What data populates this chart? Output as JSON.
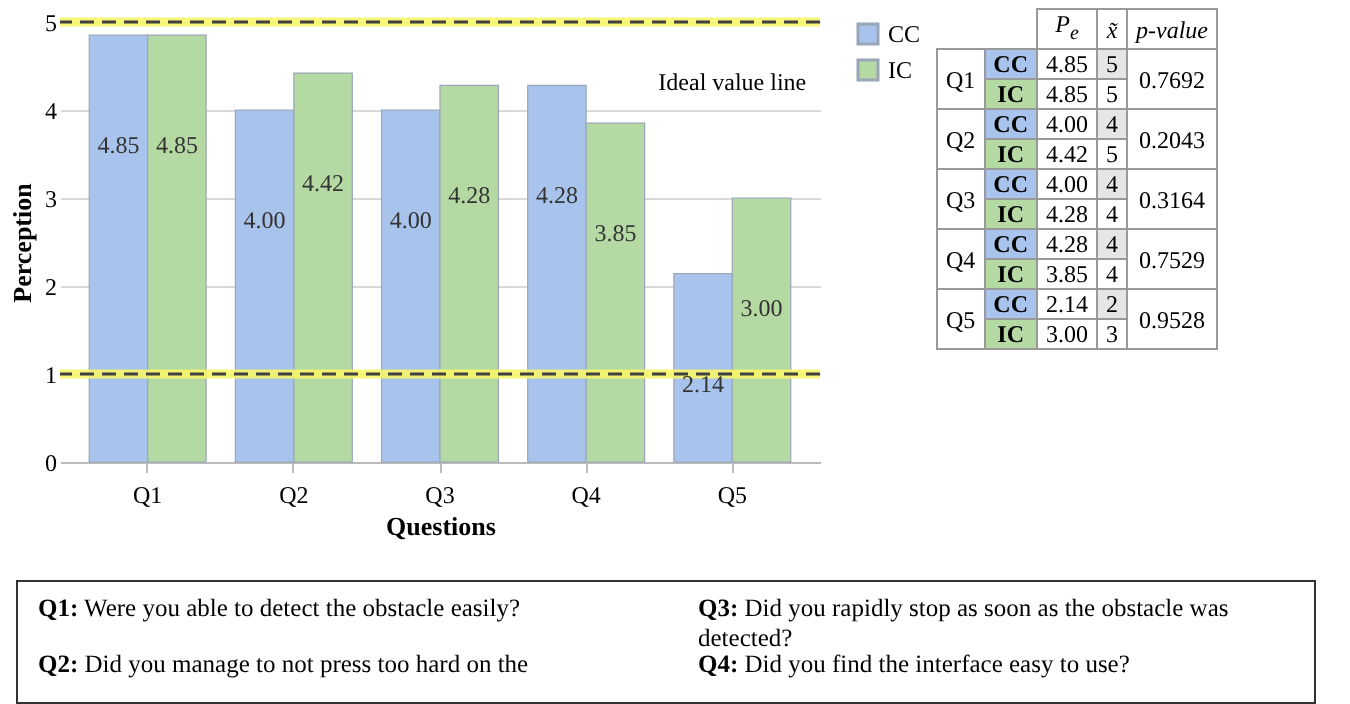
{
  "chart_data": [
    {
      "type": "bar",
      "xlabel": "Questions",
      "ylabel": "Perception",
      "categories": [
        "Q1",
        "Q2",
        "Q3",
        "Q4",
        "Q5"
      ],
      "series": [
        {
          "name": "CC",
          "color": "#a9c4ec",
          "values": [
            4.85,
            4.0,
            4.0,
            4.28,
            2.14
          ],
          "value_labels": [
            "4.85",
            "4.00",
            "4.00",
            "4.28",
            "2.14"
          ]
        },
        {
          "name": "IC",
          "color": "#b5d9a2",
          "values": [
            4.85,
            4.42,
            4.28,
            3.85,
            3.0
          ],
          "value_labels": [
            "4.85",
            "4.42",
            "4.28",
            "3.85",
            "3.00"
          ]
        }
      ],
      "ylim": [
        0,
        5
      ],
      "yticks": [
        0,
        1,
        2,
        3,
        4,
        5
      ],
      "grid": "y",
      "legend": "right",
      "ref_lines": [
        {
          "axis": "y",
          "value": 5,
          "label": "Ideal value line",
          "color": "#404040",
          "line_style": "dashed"
        },
        {
          "axis": "y",
          "value": 1,
          "color": "#404040",
          "line_style": "dashed"
        }
      ],
      "bands": [
        {
          "axis": "y",
          "from": 4.95,
          "to": 5.05,
          "color": "#f5f56a"
        },
        {
          "axis": "y",
          "from": 0.95,
          "to": 1.05,
          "color": "#f5f56a"
        }
      ]
    },
    {
      "type": "other",
      "annotations": [
        "P$_{e}$",
        "x̃",
        "p-value",
        "Q1",
        "CC",
        "4.85",
        "5",
        "0.7692",
        "IC",
        "4.85",
        "5",
        "Q2",
        "CC",
        "4.00",
        "4",
        "0.2043",
        "IC",
        "4.42",
        "5",
        "Q3",
        "CC",
        "4.00",
        "4",
        "0.3164",
        "IC",
        "4.28",
        "4",
        "Q4",
        "CC",
        "4.28",
        "4",
        "0.7529",
        "IC",
        "3.85",
        "4",
        "Q5",
        "CC",
        "2.14",
        "2",
        "0.9528",
        "IC",
        "3.00",
        "3"
      ]
    },
    {
      "type": "other",
      "annotations": [
        "Q1: Were you able to detect the obstacle easily?",
        "Q3: Did you rapidly stop as soon as the obstacle was detected?",
        "Q2: Did you manage to not press too hard on the",
        "Q4: Did you find the interface easy to use?"
      ]
    }
  ]
}
